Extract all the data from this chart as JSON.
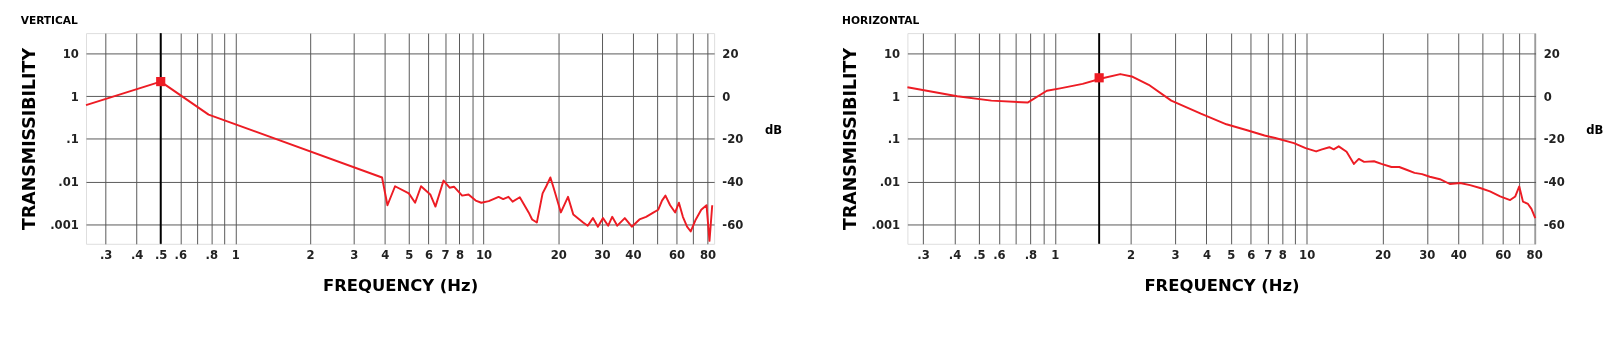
{
  "chart_data": [
    {
      "type": "line",
      "title": "VERTICAL",
      "xlabel": "FREQUENCY (Hz)",
      "ylabel": "TRANSMISSIBILITY",
      "y2label": "dB",
      "log": "xy",
      "grid": true,
      "xlim": [
        0.25,
        85
      ],
      "ylim": [
        0.00035,
        30
      ],
      "y2lim": [
        -69.1,
        29.5
      ],
      "xticks": [
        {
          "value": 0.3,
          "label": ".3"
        },
        {
          "value": 0.4,
          "label": ".4"
        },
        {
          "value": 0.5,
          "label": ".5"
        },
        {
          "value": 0.6,
          "label": ".6"
        },
        {
          "value": 0.7,
          "label": null
        },
        {
          "value": 0.8,
          "label": ".8"
        },
        {
          "value": 0.9,
          "label": null
        },
        1,
        2,
        3,
        4,
        5,
        6,
        7,
        8,
        {
          "value": 9,
          "label": null
        },
        10,
        20,
        30,
        40,
        {
          "value": 50,
          "label": null
        },
        60,
        {
          "value": 70,
          "label": null
        },
        80
      ],
      "yticks": [
        10,
        1,
        {
          "value": 0.1,
          "label": ".1"
        },
        {
          "value": 0.01,
          "label": ".01"
        },
        {
          "value": 0.001,
          "label": ".001"
        }
      ],
      "y2ticks": [
        20,
        0,
        -20,
        -40,
        -60
      ],
      "ref_lines": [
        {
          "axis": "x",
          "value": 0.5,
          "color": "#000000"
        }
      ],
      "series": [
        {
          "color": "#ed1c24",
          "marker": "none",
          "line_style": "solid",
          "x": [
            0.25,
            0.5,
            0.78,
            3.9,
            4.1,
            4.4,
            5.0,
            5.3,
            5.6,
            6.1,
            6.4,
            6.9,
            7.3,
            7.6,
            8.2,
            8.7,
            9.3,
            9.8,
            10.5,
            11.5,
            12.0,
            12.6,
            13.1,
            14.0,
            15.2,
            15.7,
            16.4,
            17.3,
            17.9,
            18.6,
            19.2,
            20.5,
            21.9,
            23.0,
            25.2,
            26.3,
            27.6,
            28.9,
            30.3,
            31.8,
            33.0,
            34.6,
            37.1,
            39.6,
            42.5,
            45.2,
            48.5,
            50.6,
            52.4,
            54.1,
            56.5,
            59.2,
            61.3,
            63.6,
            66.1,
            68.4,
            71.7,
            75.4,
            79.2,
            81.4,
            83.5
          ],
          "values": [
            0.62,
            2.2,
            0.37,
            0.0125,
            0.0028,
            0.0078,
            0.0053,
            0.0032,
            0.0078,
            0.005,
            0.0026,
            0.0106,
            0.0072,
            0.0076,
            0.0047,
            0.005,
            0.0036,
            0.0032,
            0.0035,
            0.0044,
            0.0039,
            0.0044,
            0.0034,
            0.0043,
            0.0019,
            0.0013,
            0.0011,
            0.0053,
            0.0078,
            0.0125,
            0.0069,
            0.0019,
            0.0044,
            0.0017,
            0.0011,
            0.00093,
            0.0014,
            0.00088,
            0.0014,
            0.00093,
            0.0015,
            0.00093,
            0.0014,
            0.00088,
            0.0013,
            0.0015,
            0.0019,
            0.0022,
            0.0036,
            0.0047,
            0.0028,
            0.0019,
            0.0032,
            0.0015,
            0.00088,
            0.00068,
            0.0013,
            0.0022,
            0.0028,
            0.00041,
            0.0028
          ]
        },
        {
          "type": "scatter",
          "color": "#ed1c24",
          "marker": "square",
          "x": [
            0.5
          ],
          "values": [
            2.2
          ]
        }
      ]
    },
    {
      "type": "line",
      "title": "HORIZONTAL",
      "xlabel": "FREQUENCY (Hz)",
      "ylabel": "TRANSMISSIBILITY",
      "y2label": "dB",
      "log": "xy",
      "grid": true,
      "xlim": [
        0.26,
        81
      ],
      "ylim": [
        0.00035,
        30
      ],
      "y2lim": [
        -69.1,
        29.5
      ],
      "xticks": [
        {
          "value": 0.3,
          "label": ".3"
        },
        {
          "value": 0.4,
          "label": ".4"
        },
        {
          "value": 0.5,
          "label": ".5"
        },
        {
          "value": 0.6,
          "label": ".6"
        },
        {
          "value": 0.7,
          "label": null
        },
        {
          "value": 0.8,
          "label": ".8"
        },
        {
          "value": 0.9,
          "label": null
        },
        1,
        2,
        3,
        4,
        5,
        6,
        7,
        8,
        {
          "value": 9,
          "label": null
        },
        10,
        20,
        30,
        40,
        {
          "value": 50,
          "label": null
        },
        60,
        {
          "value": 70,
          "label": null
        },
        80
      ],
      "yticks": [
        10,
        1,
        {
          "value": 0.1,
          "label": ".1"
        },
        {
          "value": 0.01,
          "label": ".01"
        },
        {
          "value": 0.001,
          "label": ".001"
        }
      ],
      "y2ticks": [
        20,
        0,
        -20,
        -40,
        -60
      ],
      "ref_lines": [
        {
          "axis": "x",
          "value": 1.5,
          "color": "#000000"
        }
      ],
      "series": [
        {
          "color": "#ed1c24",
          "marker": "none",
          "line_style": "solid",
          "x": [
            0.26,
            0.41,
            0.56,
            0.78,
            0.93,
            1.05,
            1.29,
            1.53,
            1.82,
            2.02,
            2.36,
            2.9,
            3.8,
            4.8,
            5.8,
            6.8,
            7.5,
            8.9,
            9.9,
            10.9,
            11.5,
            12.3,
            12.8,
            13.4,
            14.4,
            15.4,
            16.1,
            16.9,
            18.5,
            19.8,
            21.7,
            23.3,
            24.9,
            26.8,
            28.7,
            30.8,
            33.8,
            37.0,
            40.6,
            44.5,
            48.8,
            53.4,
            58.6,
            64.2,
            67.3,
            69.8,
            72.2,
            75.6,
            78.0,
            80.8
          ],
          "values": [
            1.62,
            1.0,
            0.79,
            0.71,
            1.34,
            1.53,
            1.95,
            2.6,
            3.3,
            2.9,
            1.85,
            0.79,
            0.39,
            0.22,
            0.16,
            0.12,
            0.105,
            0.08,
            0.061,
            0.051,
            0.057,
            0.064,
            0.057,
            0.067,
            0.05,
            0.026,
            0.034,
            0.029,
            0.03,
            0.026,
            0.022,
            0.022,
            0.019,
            0.016,
            0.015,
            0.013,
            0.0114,
            0.0088,
            0.0093,
            0.0083,
            0.0071,
            0.0059,
            0.0045,
            0.0037,
            0.0045,
            0.0077,
            0.0034,
            0.003,
            0.0023,
            0.0014
          ]
        },
        {
          "type": "scatter",
          "color": "#ed1c24",
          "marker": "square",
          "x": [
            1.5
          ],
          "values": [
            2.7
          ]
        }
      ]
    }
  ]
}
